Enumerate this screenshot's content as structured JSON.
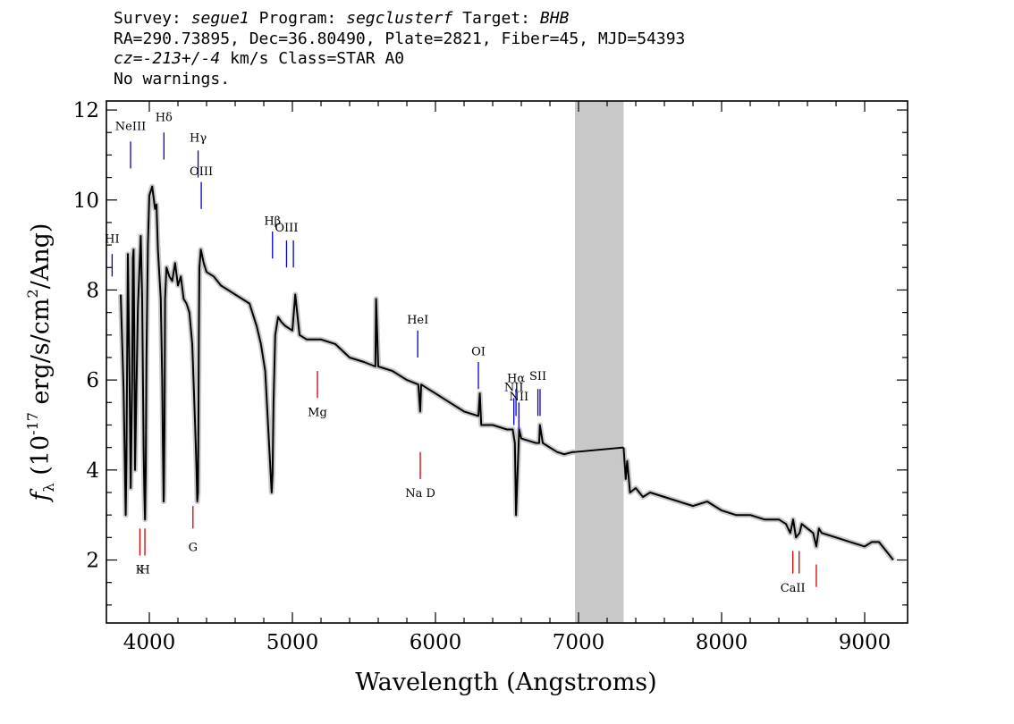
{
  "header": {
    "survey_label": "Survey: ",
    "survey": "segue1",
    "program_label": " Program: ",
    "program": "segclusterf",
    "target_label": " Target: ",
    "target": "BHB",
    "line2": "RA=290.73895, Dec=36.80490, Plate=2821, Fiber=45, MJD=54393",
    "cz_label": "cz",
    "cz_value": "=-213+/-4",
    "cz_units": " km/s Class=STAR A0",
    "line4": "No warnings."
  },
  "chart_data": {
    "type": "line",
    "xlabel": "Wavelength (Angstroms)",
    "ylabel_prefix": "f",
    "ylabel_sub": "λ",
    "ylabel_main": " (10",
    "ylabel_exp": "-17",
    "ylabel_rest": " erg/s/cm",
    "ylabel_exp2": "2",
    "ylabel_tail": "/Ang)",
    "xlim": [
      3700,
      9300
    ],
    "ylim": [
      0.6,
      12.2
    ],
    "xticks": [
      4000,
      5000,
      6000,
      7000,
      8000,
      9000
    ],
    "xtick_labels": [
      "4000",
      "5000",
      "6000",
      "7000",
      "8000",
      "9000"
    ],
    "yticks": [
      2,
      4,
      6,
      8,
      10,
      12
    ],
    "ytick_labels": [
      "2",
      "4",
      "6",
      "8",
      "10",
      "12"
    ],
    "masked_region": [
      6975,
      7315
    ],
    "colors": {
      "flux": "#000000",
      "error": "#c0c0c0",
      "mask": "#c8c8c8",
      "emission": "#0000cc",
      "absorption": "#cc0000"
    },
    "series": [
      {
        "x": [
          3800,
          3820,
          3835,
          3840,
          3850,
          3860,
          3870,
          3880,
          3885,
          3890,
          3895,
          3900,
          3920,
          3940,
          3950,
          3960,
          3965,
          3970,
          3975,
          3980,
          3990,
          4000,
          4020,
          4040,
          4050,
          4060,
          4080,
          4090,
          4095,
          4100,
          4102,
          4106,
          4110,
          4120,
          4140,
          4160,
          4180,
          4200,
          4220,
          4240,
          4260,
          4280,
          4300,
          4320,
          4330,
          4335,
          4340,
          4343,
          4346,
          4350,
          4360,
          4380,
          4400,
          4450,
          4500,
          4550,
          4600,
          4650,
          4700,
          4750,
          4780,
          4810,
          4830,
          4845,
          4855,
          4861,
          4868,
          4880,
          4900,
          4920,
          4950,
          5000,
          5020,
          5050,
          5100,
          5200,
          5300,
          5400,
          5500,
          5580,
          5585,
          5600,
          5700,
          5800,
          5880,
          5893,
          5900,
          6000,
          6100,
          6200,
          6300,
          6310,
          6320,
          6400,
          6500,
          6540,
          6555,
          6563,
          6570,
          6585,
          6600,
          6650,
          6700,
          6725,
          6730,
          6750,
          6800,
          6850,
          6900,
          6960,
          6975
        ],
        "y": [
          7.9,
          5.8,
          3.0,
          4.2,
          8.8,
          6.5,
          3.6,
          6.0,
          8.7,
          8.9,
          7.0,
          4.0,
          7.6,
          9.2,
          7.8,
          4.5,
          3.5,
          2.9,
          4.0,
          6.5,
          9.0,
          10.1,
          10.3,
          9.8,
          9.9,
          8.9,
          7.8,
          6.0,
          4.5,
          3.3,
          3.5,
          5.0,
          7.8,
          8.5,
          8.3,
          8.2,
          8.6,
          8.1,
          8.3,
          7.8,
          7.7,
          7.5,
          6.8,
          5.0,
          4.0,
          3.3,
          3.5,
          5.0,
          7.0,
          8.5,
          8.9,
          8.6,
          8.4,
          8.3,
          8.1,
          8.0,
          7.9,
          7.8,
          7.7,
          7.2,
          6.8,
          6.2,
          5.0,
          4.1,
          3.5,
          3.9,
          5.5,
          7.0,
          7.4,
          7.3,
          7.2,
          7.1,
          7.9,
          7.0,
          6.9,
          6.9,
          6.8,
          6.5,
          6.4,
          6.3,
          7.8,
          6.3,
          6.2,
          6.0,
          5.9,
          5.3,
          5.9,
          5.7,
          5.5,
          5.3,
          5.2,
          5.7,
          5.0,
          5.0,
          4.9,
          4.9,
          4.6,
          3.0,
          3.6,
          4.9,
          4.7,
          4.65,
          4.6,
          4.6,
          5.0,
          4.6,
          4.5,
          4.4,
          4.35,
          4.4,
          4.4
        ]
      },
      {
        "x": [
          7315,
          7330,
          7340,
          7360,
          7400,
          7450,
          7500,
          7600,
          7700,
          7800,
          7900,
          8000,
          8100,
          8200,
          8300,
          8400,
          8450,
          8480,
          8500,
          8520,
          8545,
          8560,
          8600,
          8640,
          8662,
          8680,
          8700,
          8800,
          8900,
          9000,
          9050,
          9100,
          9150,
          9200
        ],
        "y": [
          4.5,
          3.8,
          4.2,
          3.5,
          3.6,
          3.4,
          3.5,
          3.4,
          3.3,
          3.2,
          3.3,
          3.1,
          3.0,
          3.0,
          2.9,
          2.9,
          2.8,
          2.6,
          2.9,
          2.5,
          2.6,
          2.8,
          2.7,
          2.6,
          2.3,
          2.7,
          2.6,
          2.5,
          2.4,
          2.3,
          2.4,
          2.4,
          2.2,
          2.0
        ]
      }
    ],
    "emission_lines": [
      {
        "label": "HI",
        "wave": 3740,
        "y0": 8.3,
        "y1": 8.8,
        "ly": 9.05
      },
      {
        "label": "NeIII",
        "wave": 3869,
        "y0": 10.7,
        "y1": 11.3,
        "ly": 11.55
      },
      {
        "label": "Hδ",
        "wave": 4102,
        "y0": 10.9,
        "y1": 11.5,
        "ly": 11.75
      },
      {
        "label": "Hγ",
        "wave": 4341,
        "y0": 10.5,
        "y1": 11.1,
        "ly": 11.3
      },
      {
        "label": "OIII",
        "wave": 4363,
        "y0": 9.8,
        "y1": 10.4,
        "ly": 10.55
      },
      {
        "label": "Hβ",
        "wave": 4861,
        "y0": 8.7,
        "y1": 9.3,
        "ly": 9.45
      },
      {
        "label": "OIII",
        "wave": 4959,
        "y0": 8.5,
        "y1": 9.1,
        "ly": 9.3
      },
      {
        "label": "",
        "wave": 5007,
        "y0": 8.5,
        "y1": 9.1,
        "ly": 9.3
      },
      {
        "label": "HeI",
        "wave": 5876,
        "y0": 6.5,
        "y1": 7.1,
        "ly": 7.25
      },
      {
        "label": "OI",
        "wave": 6300,
        "y0": 5.8,
        "y1": 6.4,
        "ly": 6.55
      },
      {
        "label": "NII",
        "wave": 6548,
        "y0": 5.0,
        "y1": 5.6,
        "ly": 5.75
      },
      {
        "label": "Hα",
        "wave": 6563,
        "y0": 5.2,
        "y1": 5.8,
        "ly": 5.95
      },
      {
        "label": "NII",
        "wave": 6583,
        "y0": 4.9,
        "y1": 5.5,
        "ly": 5.55
      },
      {
        "label": "SII",
        "wave": 6716,
        "y0": 5.2,
        "y1": 5.8,
        "ly": 6.0
      },
      {
        "label": "",
        "wave": 6731,
        "y0": 5.2,
        "y1": 5.8,
        "ly": 6.0
      }
    ],
    "absorption_lines": [
      {
        "label": "Mg",
        "wave": 5175,
        "y0": 5.6,
        "y1": 6.2,
        "ly": 5.2
      },
      {
        "label": "Na D",
        "wave": 5894,
        "y0": 3.8,
        "y1": 4.4,
        "ly": 3.4
      },
      {
        "label": "G",
        "wave": 4305,
        "y0": 2.7,
        "y1": 3.2,
        "ly": 2.2
      },
      {
        "label": "K",
        "wave": 3934,
        "y0": 2.1,
        "y1": 2.7,
        "ly": 1.7
      },
      {
        "label": "H",
        "wave": 3969,
        "y0": 2.1,
        "y1": 2.7,
        "ly": 1.7
      },
      {
        "label": "CaII",
        "wave": 8498,
        "y0": 1.7,
        "y1": 2.2,
        "ly": 1.3
      },
      {
        "label": "",
        "wave": 8542,
        "y0": 1.7,
        "y1": 2.2,
        "ly": 1.3
      },
      {
        "label": "",
        "wave": 8662,
        "y0": 1.4,
        "y1": 1.9,
        "ly": 1.3
      }
    ]
  }
}
